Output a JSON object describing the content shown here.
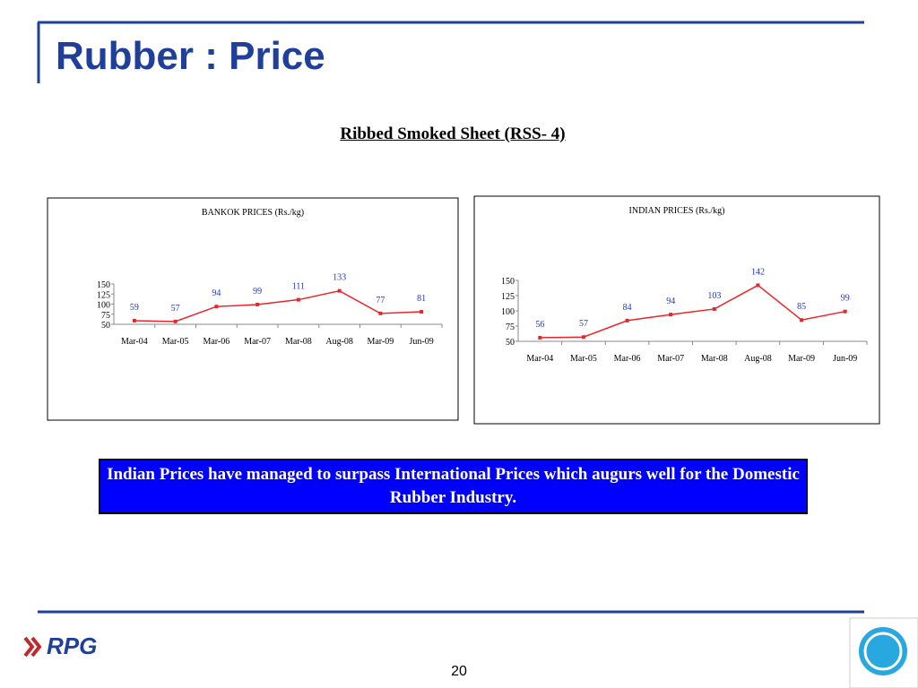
{
  "title": "Rubber : Price",
  "subtitle": "Ribbed Smoked Sheet  (RSS- 4)",
  "chart_data": [
    {
      "type": "line",
      "title": "BANKOK  PRICES  (Rs./kg)",
      "categories": [
        "Mar-04",
        "Mar-05",
        "Mar-06",
        "Mar-07",
        "Mar-08",
        "Aug-08",
        "Mar-09",
        "Jun-09"
      ],
      "series": [
        {
          "color": "#e8262a",
          "values": [
            59,
            57,
            94,
            99,
            111,
            133,
            77,
            81
          ]
        }
      ],
      "ylim": [
        50,
        150
      ],
      "yticks": [
        50,
        75,
        100,
        125,
        150
      ],
      "label_color": "#1f35c8"
    },
    {
      "type": "line",
      "title": "INDIAN PRICES  (Rs./kg)",
      "categories": [
        "Mar-04",
        "Mar-05",
        "Mar-06",
        "Mar-07",
        "Mar-08",
        "Aug-08",
        "Mar-09",
        "Jun-09"
      ],
      "series": [
        {
          "color": "#e8262a",
          "values": [
            56,
            57,
            84,
            94,
            103,
            142,
            85,
            99
          ]
        }
      ],
      "ylim": [
        50,
        150
      ],
      "yticks": [
        50,
        75,
        100,
        125,
        150
      ],
      "label_color": "#1f35c8"
    }
  ],
  "note": "Indian Prices have managed to surpass International Prices which augurs well for the Domestic Rubber Industry.",
  "logo_left": "RPG",
  "page_number": "20"
}
